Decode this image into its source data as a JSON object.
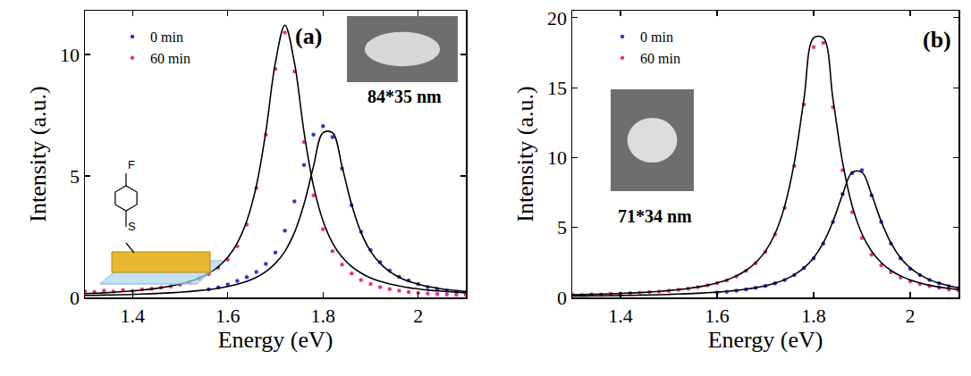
{
  "chart_data": [
    {
      "type": "scatter",
      "panel_label": "(a)",
      "inset_label": "84*35 nm",
      "annotations": [
        "F",
        "S"
      ],
      "x_label": "Energy (eV)",
      "y_label": "Intensity (a.u.)",
      "xlim": [
        1.3,
        2.1
      ],
      "xticks": [
        1.4,
        1.6,
        1.8,
        2
      ],
      "ylim": [
        0,
        11.8
      ],
      "yticks": [
        0,
        5,
        10
      ],
      "grid": false,
      "legend": "upper left",
      "x": [
        1.3,
        1.32,
        1.34,
        1.36,
        1.38,
        1.4,
        1.42,
        1.44,
        1.46,
        1.48,
        1.5,
        1.52,
        1.54,
        1.56,
        1.58,
        1.6,
        1.62,
        1.64,
        1.66,
        1.68,
        1.7,
        1.72,
        1.74,
        1.76,
        1.78,
        1.8,
        1.82,
        1.84,
        1.86,
        1.88,
        1.9,
        1.92,
        1.94,
        1.96,
        1.98,
        2.0,
        2.02,
        2.04,
        2.06,
        2.08,
        2.1
      ],
      "series": [
        {
          "name": "0 min",
          "color": "#2b3bd6",
          "marker": "circle",
          "values": [
            null,
            null,
            null,
            null,
            null,
            null,
            null,
            null,
            null,
            null,
            null,
            null,
            null,
            0.33,
            0.41,
            0.53,
            0.68,
            0.84,
            1.05,
            1.38,
            1.85,
            2.75,
            3.95,
            5.45,
            6.7,
            7.05,
            6.6,
            5.3,
            3.8,
            2.7,
            1.95,
            1.45,
            1.1,
            0.85,
            0.7,
            0.55,
            0.42,
            0.35,
            0.28,
            0.22,
            0.2
          ]
        },
        {
          "name": "60 min",
          "color": "#e8358c",
          "marker": "circle",
          "values": [
            0.25,
            0.22,
            0.28,
            0.24,
            0.3,
            0.27,
            0.33,
            0.36,
            0.4,
            0.45,
            0.52,
            0.62,
            0.78,
            0.96,
            1.22,
            1.55,
            2.1,
            3.0,
            4.5,
            6.7,
            9.4,
            10.9,
            9.3,
            6.4,
            4.2,
            2.8,
            1.9,
            1.35,
            0.98,
            0.72,
            0.55,
            0.42,
            0.34,
            0.28,
            0.22,
            0.18,
            0.16,
            0.14,
            0.12,
            0.11,
            0.1
          ]
        },
        {
          "type": "line",
          "color": "#000000",
          "line_style": "solid",
          "values": [
            0.08,
            0.087,
            0.095,
            0.103,
            0.113,
            0.124,
            0.136,
            0.151,
            0.169,
            0.189,
            0.213,
            0.243,
            0.279,
            0.323,
            0.378,
            0.449,
            0.543,
            0.664,
            0.829,
            1.062,
            1.4,
            1.9,
            2.67,
            3.83,
            5.39,
            6.78,
            6.78,
            5.39,
            3.83,
            2.67,
            1.9,
            1.4,
            1.06,
            0.83,
            0.66,
            0.54,
            0.45,
            0.38,
            0.32,
            0.28,
            0.24
          ]
        },
        {
          "type": "line",
          "color": "#000000",
          "line_style": "solid",
          "values": [
            0.156,
            0.172,
            0.19,
            0.212,
            0.237,
            0.267,
            0.303,
            0.346,
            0.4,
            0.467,
            0.549,
            0.659,
            0.802,
            0.996,
            1.267,
            1.657,
            2.24,
            3.15,
            4.59,
            6.83,
            9.66,
            11.2,
            9.66,
            6.83,
            4.59,
            3.15,
            2.24,
            1.66,
            1.27,
            1.0,
            0.8,
            0.66,
            0.55,
            0.47,
            0.4,
            0.35,
            0.3,
            0.27,
            0.24,
            0.21,
            0.19
          ]
        }
      ]
    },
    {
      "type": "scatter",
      "panel_label": "(b)",
      "inset_label": "71*34 nm",
      "x_label": "Energy (eV)",
      "y_label": "Intensity (a.u.)",
      "xlim": [
        1.3,
        2.1
      ],
      "xticks": [
        1.4,
        1.6,
        1.8,
        2
      ],
      "ylim": [
        0,
        20.5
      ],
      "yticks": [
        0,
        5,
        10,
        15,
        20
      ],
      "grid": false,
      "legend": "upper left",
      "x": [
        1.3,
        1.32,
        1.34,
        1.36,
        1.38,
        1.4,
        1.42,
        1.44,
        1.46,
        1.48,
        1.5,
        1.52,
        1.54,
        1.56,
        1.58,
        1.6,
        1.62,
        1.64,
        1.66,
        1.68,
        1.7,
        1.72,
        1.74,
        1.76,
        1.78,
        1.8,
        1.82,
        1.84,
        1.86,
        1.88,
        1.9,
        1.92,
        1.94,
        1.96,
        1.98,
        2.0,
        2.02,
        2.04,
        2.06,
        2.08,
        2.1
      ],
      "series": [
        {
          "name": "0 min",
          "color": "#2b3bd6",
          "marker": "circle",
          "values": [
            null,
            null,
            null,
            null,
            null,
            null,
            null,
            null,
            null,
            null,
            null,
            null,
            null,
            null,
            null,
            0.35,
            0.4,
            0.48,
            0.57,
            0.68,
            0.82,
            1.0,
            1.25,
            1.6,
            2.1,
            2.8,
            3.85,
            5.4,
            7.4,
            8.9,
            9.1,
            7.3,
            5.4,
            3.85,
            2.8,
            2.05,
            1.6,
            1.25,
            1.0,
            0.8,
            0.65
          ]
        },
        {
          "name": "60 min",
          "color": "#e8358c",
          "marker": "circle",
          "values": [
            0.2,
            0.18,
            0.22,
            0.2,
            0.25,
            0.27,
            0.3,
            0.33,
            0.38,
            0.42,
            0.48,
            0.55,
            0.63,
            0.74,
            0.86,
            1.02,
            1.22,
            1.5,
            1.9,
            2.45,
            3.25,
            4.5,
            6.4,
            9.4,
            13.8,
            17.9,
            18.2,
            13.6,
            9.1,
            6.1,
            4.25,
            3.05,
            2.3,
            1.8,
            1.42,
            1.15,
            0.95,
            0.8,
            0.68,
            0.58,
            0.5
          ]
        },
        {
          "type": "line",
          "color": "#000000",
          "line_style": "solid",
          "values": [
            0.094,
            0.101,
            0.108,
            0.116,
            0.126,
            0.136,
            0.147,
            0.161,
            0.176,
            0.193,
            0.213,
            0.236,
            0.263,
            0.294,
            0.332,
            0.377,
            0.433,
            0.5,
            0.586,
            0.694,
            0.834,
            1.019,
            1.269,
            1.617,
            2.11,
            2.83,
            3.9,
            5.43,
            7.36,
            8.95,
            8.95,
            7.36,
            5.43,
            3.9,
            2.83,
            2.11,
            1.62,
            1.27,
            1.02,
            0.83,
            0.69
          ]
        },
        {
          "type": "line",
          "color": "#000000",
          "line_style": "solid",
          "values": [
            0.184,
            0.199,
            0.216,
            0.235,
            0.257,
            0.283,
            0.312,
            0.346,
            0.386,
            0.433,
            0.49,
            0.558,
            0.639,
            0.742,
            0.869,
            1.04,
            1.25,
            1.54,
            1.93,
            2.49,
            3.3,
            4.55,
            6.52,
            9.65,
            14.19,
            18.56,
            18.56,
            14.19,
            9.65,
            6.52,
            4.55,
            3.3,
            2.49,
            1.93,
            1.54,
            1.25,
            1.04,
            0.87,
            0.74,
            0.64,
            0.56
          ]
        }
      ]
    }
  ]
}
